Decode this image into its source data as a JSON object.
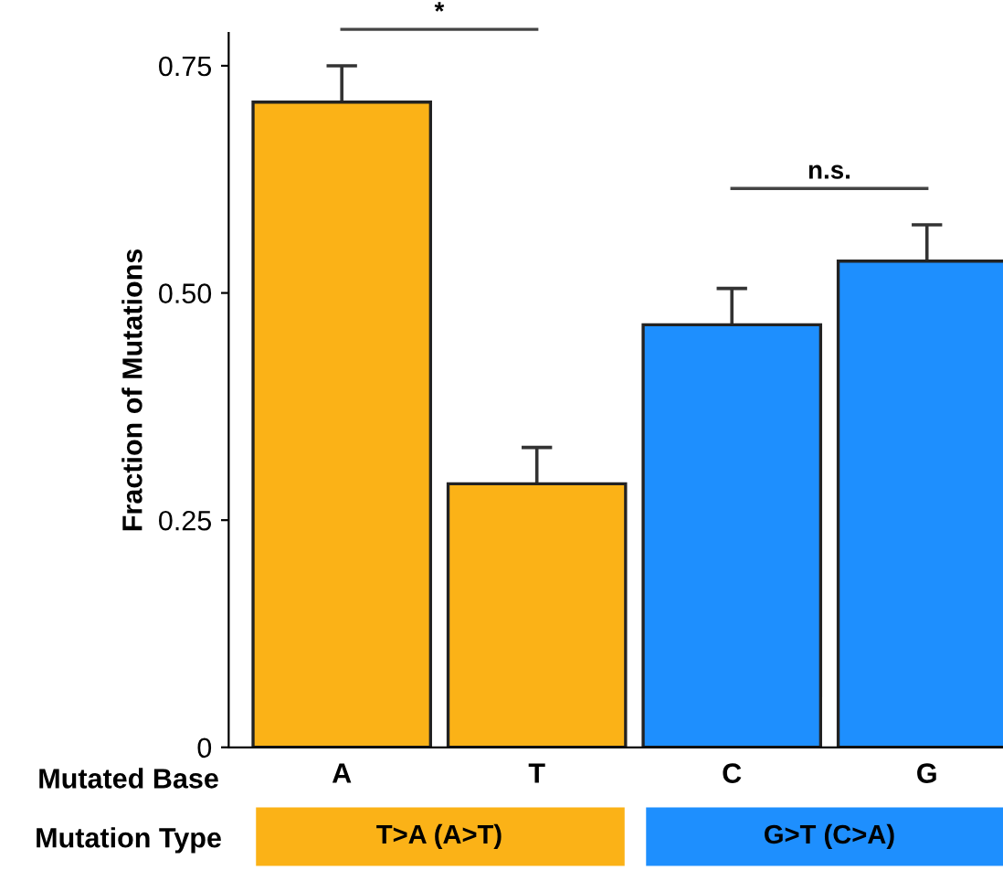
{
  "chart_data": {
    "type": "bar",
    "ylabel": "Fraction of Mutations",
    "categories": [
      "A",
      "T",
      "C",
      "G"
    ],
    "values": [
      0.71,
      0.29,
      0.465,
      0.535
    ],
    "errors": [
      0.04,
      0.04,
      0.04,
      0.04
    ],
    "colors": [
      "#fbb217",
      "#fbb217",
      "#1e8ffe",
      "#1e8ffe"
    ],
    "ylim": [
      0,
      0.786
    ],
    "yticks": [
      0,
      0.25,
      {
        "value": 0.5,
        "label": "0.50"
      },
      0.75
    ],
    "annotations": [
      "*",
      "n.s.",
      "Mutated Base",
      "Mutation Type",
      "T>A (A>T)",
      "G>T (C>A)"
    ],
    "grid": false
  }
}
